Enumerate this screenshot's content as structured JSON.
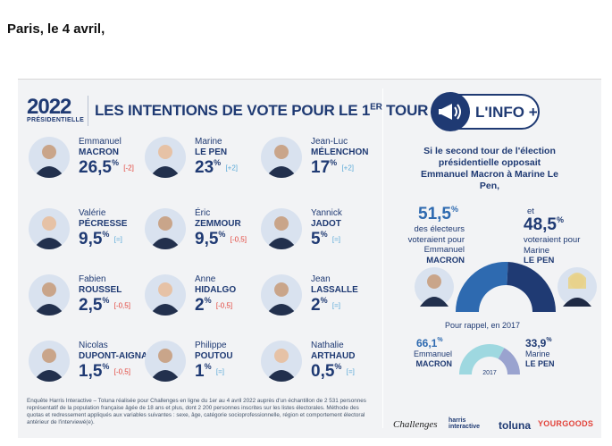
{
  "dateline": "Paris, le 4 avril,",
  "header": {
    "logo_year": "2022",
    "logo_sub": "PRÉSIDENTIELLE",
    "title": "LES INTENTIONS DE VOTE POUR LE 1",
    "title_sup": "ER",
    "title_end": " TOUR"
  },
  "candidates": [
    {
      "first": "Emmanuel",
      "last": "MACRON",
      "pct": "26,5",
      "unit": "%",
      "change": "[-2]",
      "trend": "down"
    },
    {
      "first": "Marine",
      "last": "LE PEN",
      "pct": "23",
      "unit": "%",
      "change": "[+2]",
      "trend": "up"
    },
    {
      "first": "Jean-Luc",
      "last": "MÉLENCHON",
      "pct": "17",
      "unit": "%",
      "change": "[+2]",
      "trend": "up"
    },
    {
      "first": "Valérie",
      "last": "PÉCRESSE",
      "pct": "9,5",
      "unit": "%",
      "change": "[=]",
      "trend": "eq"
    },
    {
      "first": "Éric",
      "last": "ZEMMOUR",
      "pct": "9,5",
      "unit": "%",
      "change": "[-0,5]",
      "trend": "down"
    },
    {
      "first": "Yannick",
      "last": "JADOT",
      "pct": "5",
      "unit": "%",
      "change": "[=]",
      "trend": "eq"
    },
    {
      "first": "Fabien",
      "last": "ROUSSEL",
      "pct": "2,5",
      "unit": "%",
      "change": "[-0,5]",
      "trend": "down"
    },
    {
      "first": "Anne",
      "last": "HIDALGO",
      "pct": "2",
      "unit": "%",
      "change": "[-0,5]",
      "trend": "down"
    },
    {
      "first": "Jean",
      "last": "LASSALLE",
      "pct": "2",
      "unit": "%",
      "change": "[=]",
      "trend": "eq"
    },
    {
      "first": "Nicolas",
      "last": "DUPONT-AIGNAN",
      "pct": "1,5",
      "unit": "%",
      "change": "[-0,5]",
      "trend": "down"
    },
    {
      "first": "Philippe",
      "last": "POUTOU",
      "pct": "1",
      "unit": "%",
      "change": "[=]",
      "trend": "eq"
    },
    {
      "first": "Nathalie",
      "last": "ARTHAUD",
      "pct": "0,5",
      "unit": "%",
      "change": "[=]",
      "trend": "eq"
    }
  ],
  "footnote": "Enquête Harris Interactive – Toluna réalisée pour Challenges en ligne du 1er au 4 avril 2022 auprès d'un échantillon de 2 531 personnes représentatif de la population française âgée de 18 ans et plus, dont 2 200 personnes inscrites sur les listes électorales. Méthode des quotas et redressement appliqués aux variables suivantes : sexe, âge, catégorie socioprofessionnelle, région et comportement électoral antérieur de l'interviewé(e).",
  "info": {
    "badge": "L'INFO +",
    "question": "Si le second tour de l'élection présidentielle opposait Emmanuel Macron à Marine Le Pen,",
    "left_pct": "51,5",
    "left_text": "des électeurs voteraient pour Emmanuel",
    "left_name": "MACRON",
    "right_prefix": "et",
    "right_pct": "48,5",
    "right_text": "voteraient pour Marine",
    "right_name": "LE PEN",
    "reminder": "Pour rappel, en 2017",
    "small_left_pct": "66,1",
    "small_left_first": "Emmanuel",
    "small_left_last": "MACRON",
    "small_right_pct": "33,9",
    "small_right_first": "Marine",
    "small_right_last": "LE PEN",
    "small_year": "2017",
    "unit": "%"
  },
  "partners": [
    "Challenges",
    "harris interactive",
    "toluna",
    "YOURGOODS"
  ],
  "colors": {
    "navy": "#1f3a73",
    "blue": "#2e6ab0",
    "lightblue": "#5aa9d8",
    "red": "#e2433a",
    "teal": "#9ed8e0",
    "lavender": "#9aa3cf"
  }
}
